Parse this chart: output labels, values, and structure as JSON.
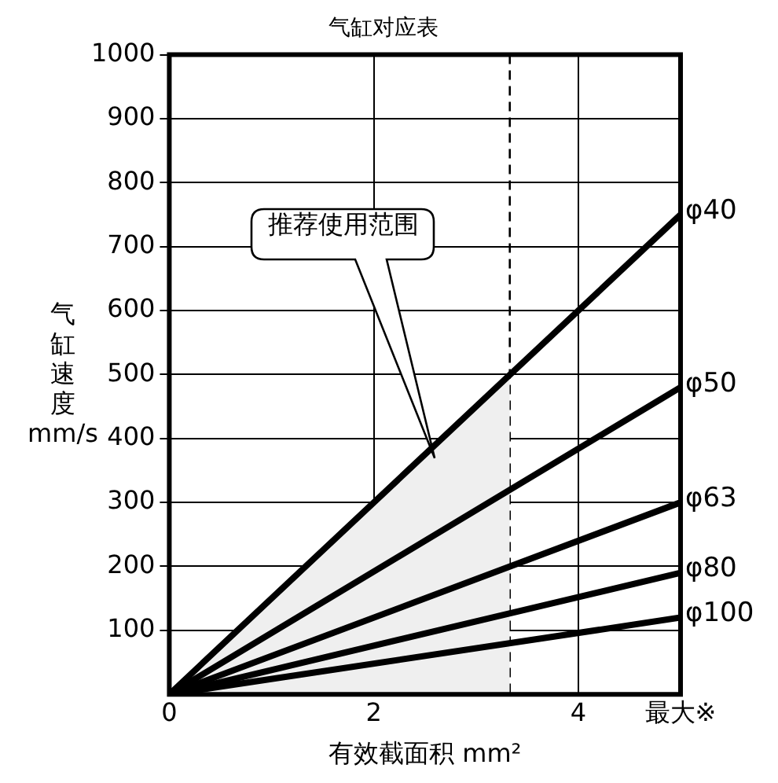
{
  "chart_data": {
    "type": "line",
    "title": "气缸对应表",
    "xlabel": "有效截面积 mm²",
    "ylabel": "气缸速度 mm/s",
    "xlim": [
      0,
      5
    ],
    "xticks": [
      0,
      2,
      4,
      {
        "value": 5,
        "label": "最大※"
      }
    ],
    "ylim": [
      0,
      1000
    ],
    "yticks": [
      100,
      200,
      300,
      400,
      500,
      600,
      700,
      800,
      900,
      1000
    ],
    "grid": true,
    "legend": false,
    "marker": "none",
    "line_style": "solid",
    "series": [
      {
        "type": "area",
        "color": "#efefef",
        "x": [
          0,
          3.33
        ],
        "values": [
          0,
          500
        ]
      },
      {
        "name": "φ40",
        "color": "#000000",
        "x": [
          0,
          5
        ],
        "values": [
          0,
          750
        ]
      },
      {
        "name": "φ50",
        "color": "#000000",
        "x": [
          0,
          5
        ],
        "values": [
          0,
          480
        ]
      },
      {
        "name": "φ63",
        "color": "#000000",
        "x": [
          0,
          5
        ],
        "values": [
          0,
          300
        ]
      },
      {
        "name": "φ80",
        "color": "#000000",
        "x": [
          0,
          5
        ],
        "values": [
          0,
          190
        ]
      },
      {
        "name": "φ100",
        "color": "#000000",
        "x": [
          0,
          5
        ],
        "values": [
          0,
          120
        ]
      }
    ],
    "ref_lines": [
      {
        "axis": "x",
        "value": 3.33,
        "line_style": "dashed",
        "color": "#000000"
      }
    ],
    "annotations": [
      "推荐使用范围"
    ]
  }
}
